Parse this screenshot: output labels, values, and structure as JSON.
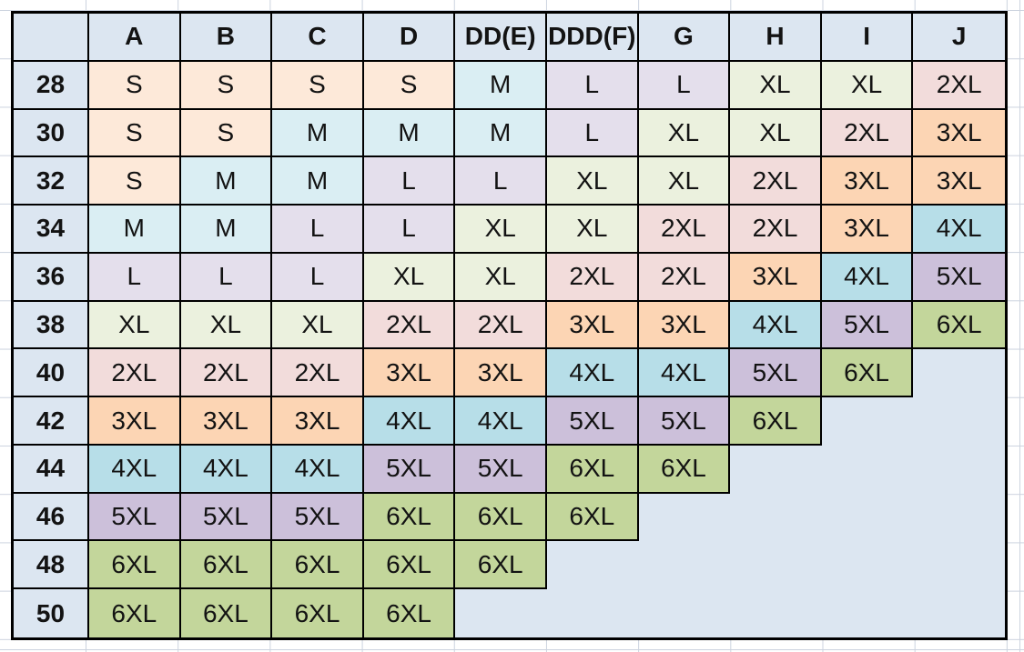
{
  "chart_data": {
    "type": "table",
    "title": "",
    "corner_label": "",
    "columns": [
      "A",
      "B",
      "C",
      "D",
      "DD(E)",
      "DDD(F)",
      "G",
      "H",
      "I",
      "J"
    ],
    "row_labels": [
      "28",
      "30",
      "32",
      "34",
      "36",
      "38",
      "40",
      "42",
      "44",
      "46",
      "48",
      "50"
    ],
    "cells": [
      [
        "S",
        "S",
        "S",
        "S",
        "M",
        "L",
        "L",
        "XL",
        "XL",
        "2XL"
      ],
      [
        "S",
        "S",
        "M",
        "M",
        "M",
        "L",
        "XL",
        "XL",
        "2XL",
        "3XL"
      ],
      [
        "S",
        "M",
        "M",
        "L",
        "L",
        "XL",
        "XL",
        "2XL",
        "3XL",
        "3XL"
      ],
      [
        "M",
        "M",
        "L",
        "L",
        "XL",
        "XL",
        "2XL",
        "2XL",
        "3XL",
        "4XL"
      ],
      [
        "L",
        "L",
        "L",
        "XL",
        "XL",
        "2XL",
        "2XL",
        "3XL",
        "4XL",
        "5XL"
      ],
      [
        "XL",
        "XL",
        "XL",
        "2XL",
        "2XL",
        "3XL",
        "3XL",
        "4XL",
        "5XL",
        "6XL"
      ],
      [
        "2XL",
        "2XL",
        "2XL",
        "3XL",
        "3XL",
        "4XL",
        "4XL",
        "5XL",
        "6XL",
        ""
      ],
      [
        "3XL",
        "3XL",
        "3XL",
        "4XL",
        "4XL",
        "5XL",
        "5XL",
        "6XL",
        "",
        ""
      ],
      [
        "4XL",
        "4XL",
        "4XL",
        "5XL",
        "5XL",
        "6XL",
        "6XL",
        "",
        "",
        ""
      ],
      [
        "5XL",
        "5XL",
        "5XL",
        "6XL",
        "6XL",
        "6XL",
        "",
        "",
        "",
        ""
      ],
      [
        "6XL",
        "6XL",
        "6XL",
        "6XL",
        "6XL",
        "",
        "",
        "",
        "",
        ""
      ],
      [
        "6XL",
        "6XL",
        "6XL",
        "6XL",
        "",
        "",
        "",
        "",
        "",
        ""
      ]
    ],
    "legend_colors": {
      "S": "#fde9d9",
      "M": "#daeef3",
      "L": "#e4dfec",
      "XL": "#ebf1de",
      "2XL": "#f2dcdb",
      "3XL": "#fcd5b4",
      "4XL": "#b7dee8",
      "5XL": "#ccc0da",
      "6XL": "#c3d69b"
    },
    "layout": {
      "grid": "on",
      "header_row": "top",
      "header_column": "left"
    }
  },
  "theme": {
    "page_bg": "#ffffff",
    "header_bg": "#dce6f1",
    "empty_bg": "#dce6f1",
    "border_color": "#000000",
    "gridline_color": "#ccd3df",
    "text_color": "#131313"
  }
}
